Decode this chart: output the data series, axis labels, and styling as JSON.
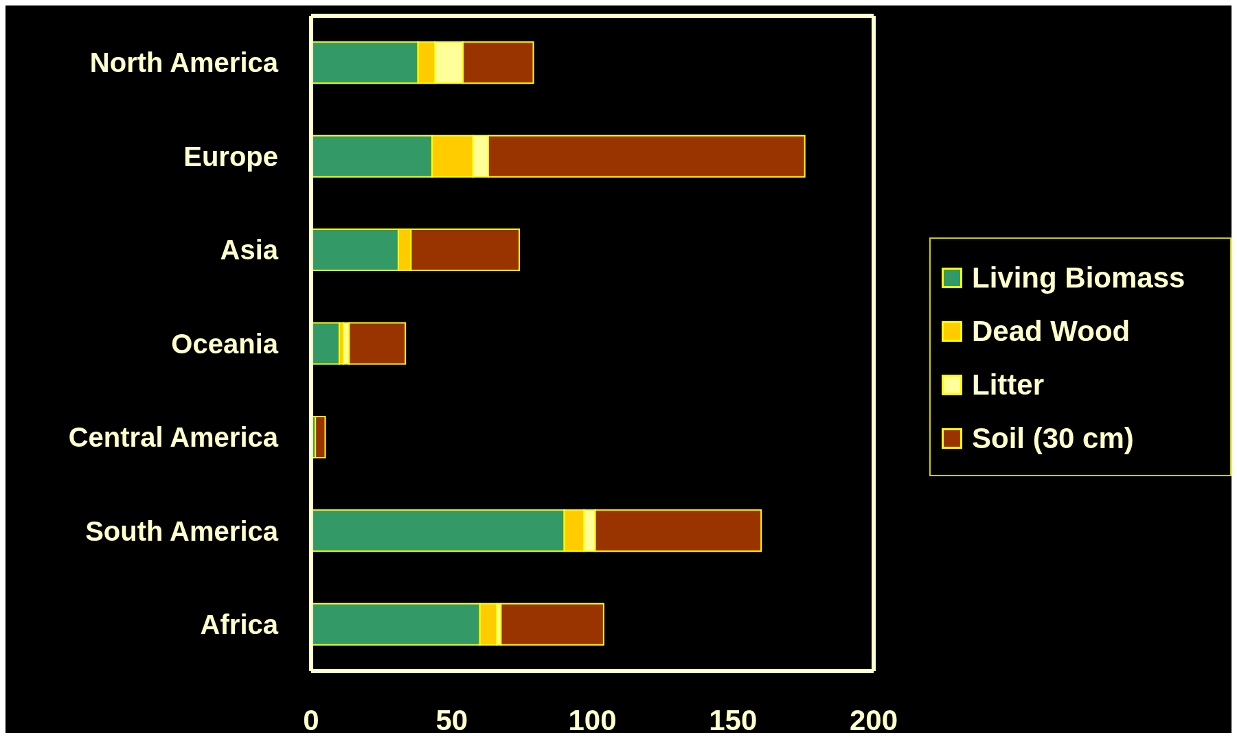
{
  "chart_data": {
    "type": "bar",
    "orientation": "horizontal",
    "stacked": true,
    "categories": [
      "North America",
      "Europe",
      "Asia",
      "Oceania",
      "Central America",
      "South America",
      "Africa"
    ],
    "series": [
      {
        "name": "Living Biomass",
        "color": "#339966",
        "values": [
          38,
          43,
          31,
          10,
          1.5,
          90,
          60
        ]
      },
      {
        "name": "Dead Wood",
        "color": "#ffcc00",
        "values": [
          6,
          14.5,
          4.5,
          1.5,
          null,
          7,
          6
        ]
      },
      {
        "name": "Litter",
        "color": "#ffff99",
        "values": [
          10,
          5.5,
          null,
          2,
          null,
          4,
          1.5
        ]
      },
      {
        "name": "Soil (30 cm)",
        "color": "#993300",
        "values": [
          25,
          112.5,
          38.5,
          20,
          3.5,
          59,
          36.5
        ]
      }
    ],
    "xlim": [
      0,
      200
    ],
    "xticks": [
      0,
      50,
      100,
      150,
      200
    ],
    "legend": "right"
  }
}
